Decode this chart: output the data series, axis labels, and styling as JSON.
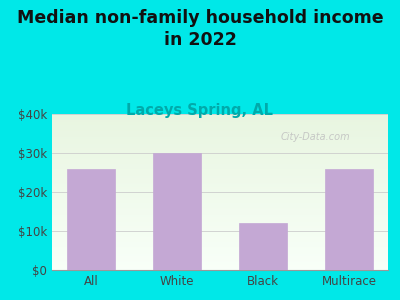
{
  "categories": [
    "All",
    "White",
    "Black",
    "Multirace"
  ],
  "values": [
    26000,
    30000,
    12000,
    26000
  ],
  "bar_color": "#c4a8d4",
  "bar_edgecolor": "#c4a8d4",
  "title": "Median non-family household income\nin 2022",
  "subtitle": "Laceys Spring, AL",
  "subtitle_color": "#00aaaa",
  "title_color": "#111111",
  "background_outer": "#00e8e8",
  "ylim": [
    0,
    40000
  ],
  "yticks": [
    0,
    10000,
    20000,
    30000,
    40000
  ],
  "ytick_labels": [
    "$0",
    "$10k",
    "$20k",
    "$30k",
    "$40k"
  ],
  "watermark": "City-Data.com",
  "title_fontsize": 12.5,
  "subtitle_fontsize": 10.5,
  "tick_fontsize": 8.5,
  "bar_width": 0.55,
  "grad_top": "#e8f5e0",
  "grad_bottom": "#f8fff8"
}
